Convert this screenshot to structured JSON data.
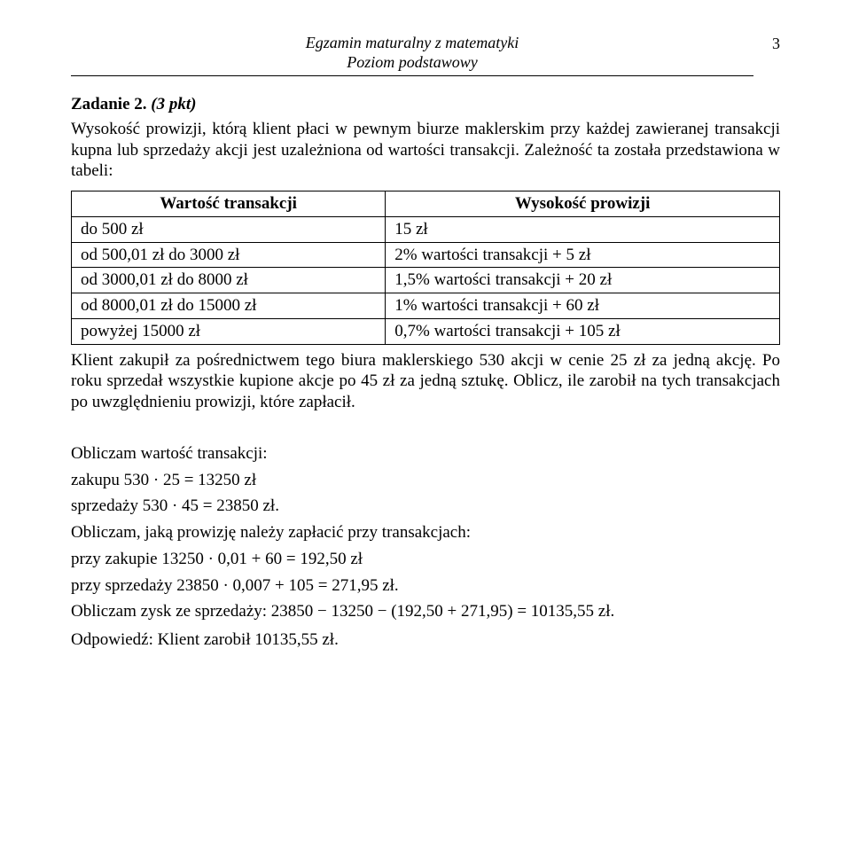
{
  "header": {
    "line1": "Egzamin maturalny z matematyki",
    "line2": "Poziom podstawowy",
    "pageNumber": "3"
  },
  "task": {
    "title_prefix": "Zadanie 2.",
    "points": "(3 pkt)",
    "statement": "Wysokość prowizji, którą klient płaci w pewnym biurze maklerskim przy każdej zawieranej transakcji kupna lub sprzedaży akcji jest uzależniona od wartości transakcji. Zależność ta została przedstawiona w tabeli:"
  },
  "table": {
    "headers": [
      "Wartość transakcji",
      "Wysokość prowizji"
    ],
    "rows": [
      [
        "do 500 zł",
        "15 zł"
      ],
      [
        "od 500,01 zł do 3000 zł",
        "2% wartości transakcji + 5 zł"
      ],
      [
        "od 3000,01 zł do 8000 zł",
        "1,5% wartości transakcji + 20 zł"
      ],
      [
        "od 8000,01 zł do 15000 zł",
        "1% wartości transakcji + 60 zł"
      ],
      [
        "powyżej 15000 zł",
        "0,7% wartości transakcji + 105 zł"
      ]
    ]
  },
  "post_table": "Klient zakupił za pośrednictwem tego biura maklerskiego 530 akcji w cenie 25 zł za jedną akcję. Po roku sprzedał wszystkie kupione akcje po 45 zł za jedną sztukę. Oblicz, ile zarobił na tych transakcjach po uwzględnieniu prowizji, które zapłacił.",
  "solution": {
    "l1": "Obliczam wartość transakcji:",
    "eq1": "zakupu 530 · 25 = 13250 zł",
    "eq2": "sprzedaży 530 · 45 = 23850 zł.",
    "l2": "Obliczam, jaką prowizję należy zapłacić przy transakcjach:",
    "eq3": "przy zakupie 13250 · 0,01 + 60 = 192,50 zł",
    "eq4": "przy sprzedaży 23850 · 0,007 + 105 = 271,95 zł.",
    "l3": "Obliczam zysk ze sprzedaży: 23850 − 13250 − (192,50 + 271,95) = 10135,55 zł.",
    "answer": "Odpowiedź: Klient zarobił 10135,55 zł."
  }
}
